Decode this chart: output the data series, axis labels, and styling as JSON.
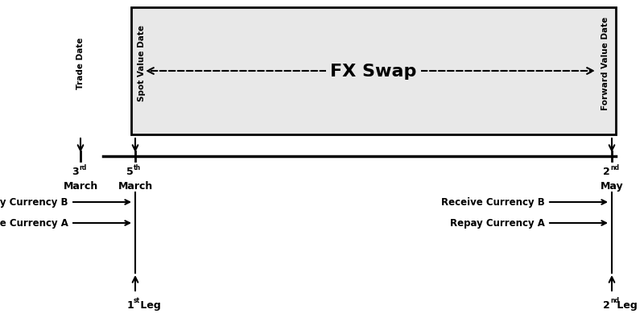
{
  "fig_width": 8.0,
  "fig_height": 4.06,
  "dpi": 100,
  "bg_color": "#ffffff",
  "box_fill": "#e8e8e8",
  "box_edge": "#000000",
  "font_color": "#000000",
  "trade_label": "Trade Date",
  "spot_label": "Spot Value Date",
  "forward_label": "Forward Value Date",
  "fx_swap_label": "FX Swap",
  "trade_date_num": "3",
  "trade_date_sup": "rd",
  "trade_date_month": "March",
  "spot_date_num": "5",
  "spot_date_sup": "th",
  "spot_date_month": "March",
  "forward_date_num": "2",
  "forward_date_sup": "nd",
  "forward_date_month": "May",
  "pay_label": "Pay Currency B",
  "receive_a_label": "Receive Currency A",
  "receive_b_label": "Receive Currency B",
  "repay_label": "Repay Currency A",
  "leg1_num": "1",
  "leg1_sup": "st",
  "leg1_text": " Leg",
  "leg2_num": "2",
  "leg2_sup": "nd",
  "leg2_text": " Leg"
}
